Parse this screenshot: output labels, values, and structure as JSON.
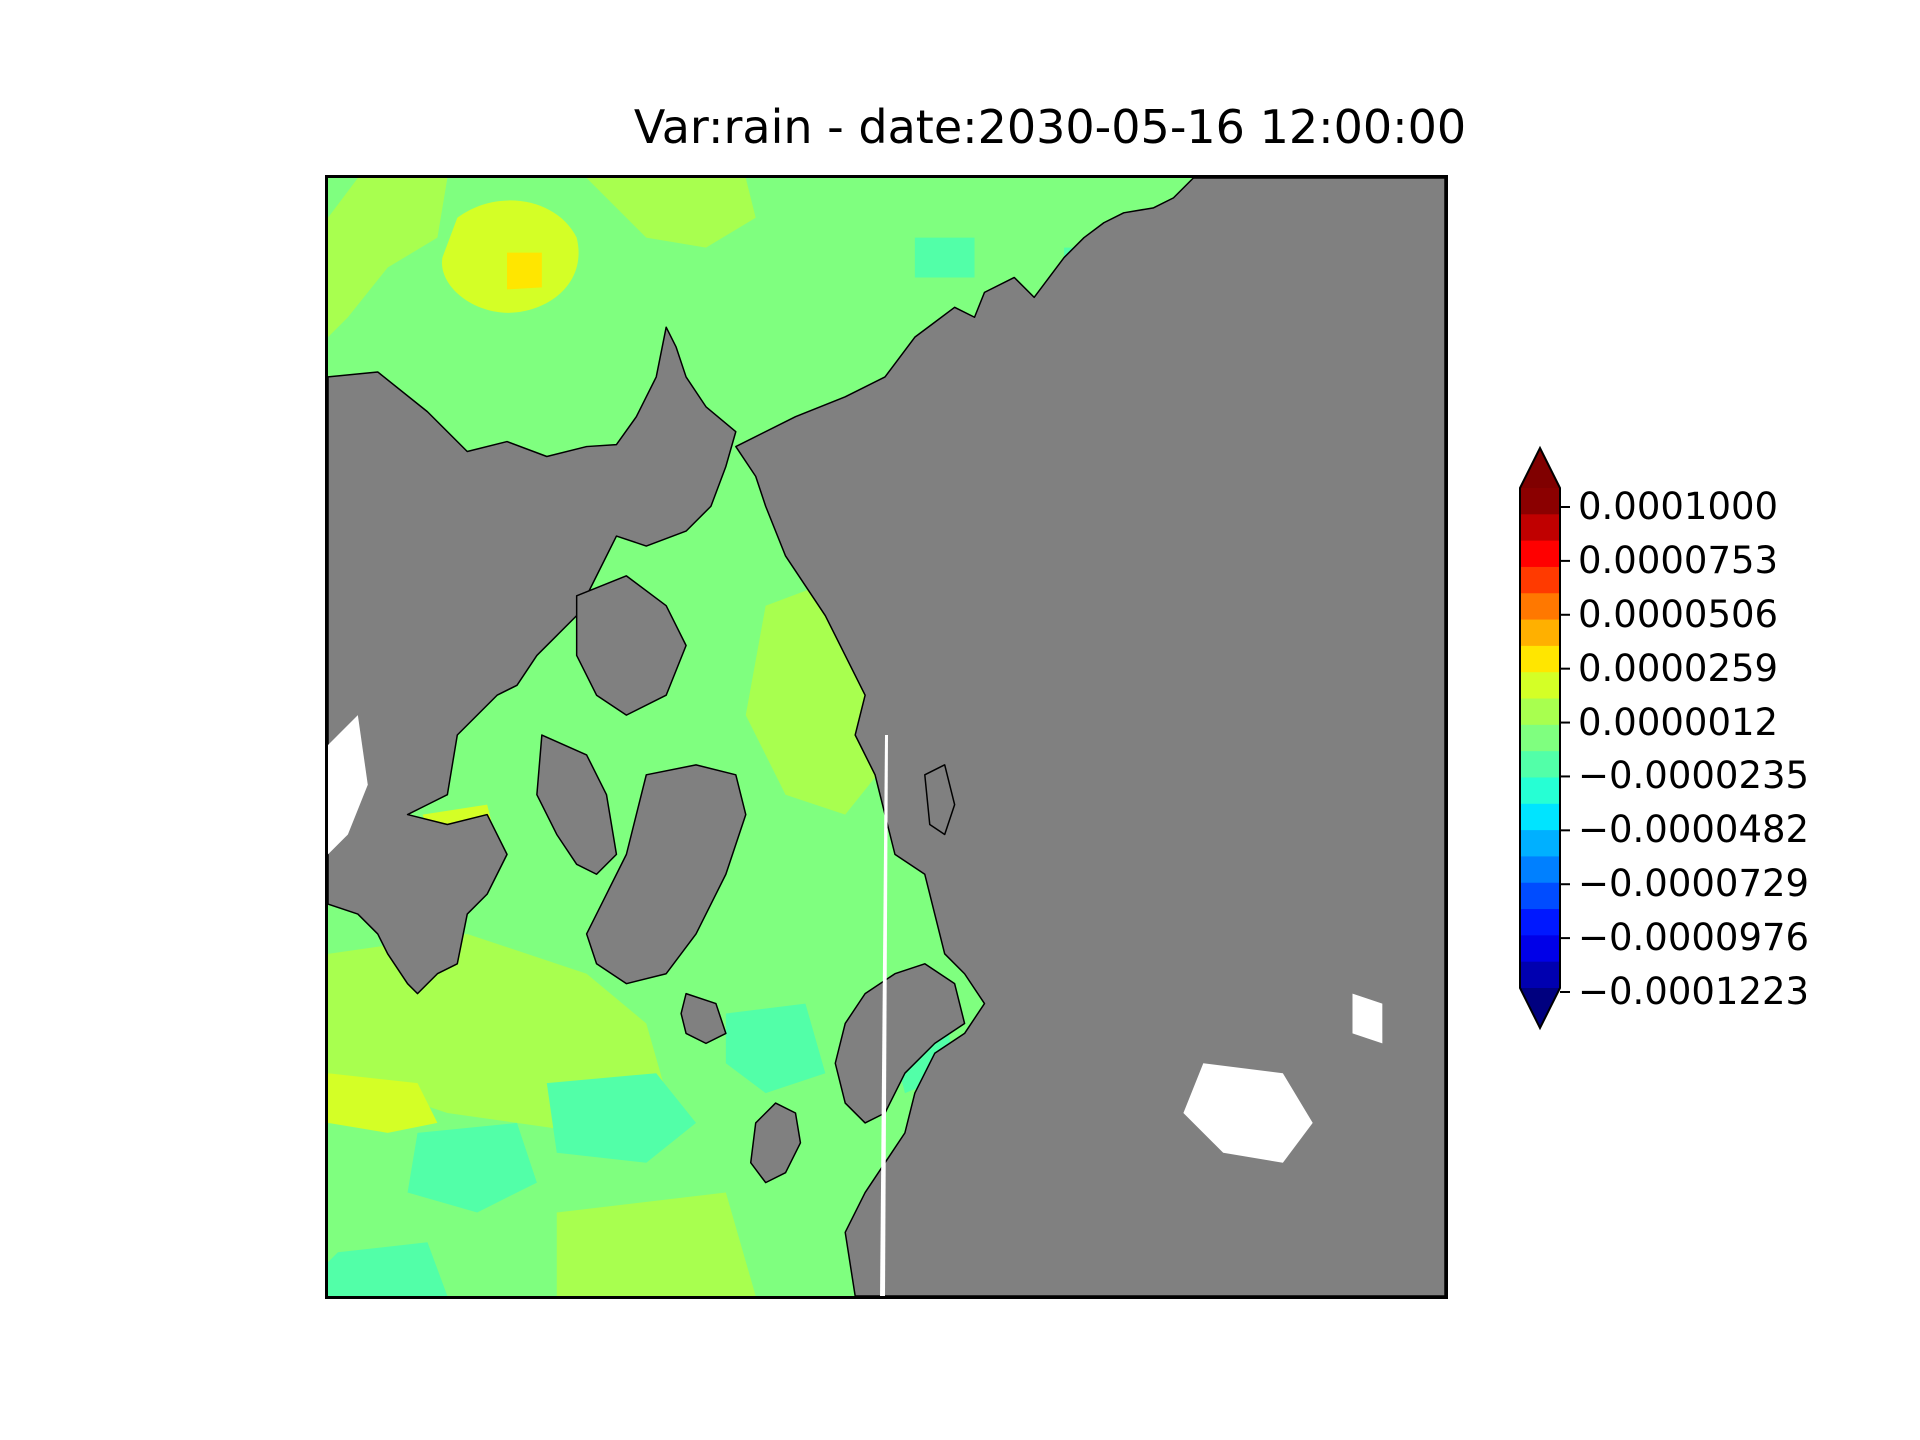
{
  "title": "Var:rain - date:2030-05-16 12:00:00",
  "colorbar": {
    "extend": "both",
    "tick_labels": [
      "0.0001000",
      "0.0000753",
      "0.0000506",
      "0.0000259",
      "0.0000012",
      "−0.0000235",
      "−0.0000482",
      "−0.0000729",
      "−0.0000976",
      "−0.0001223"
    ],
    "colors_top_to_bottom": [
      "#8b0000",
      "#c00000",
      "#ff0000",
      "#ff3a00",
      "#ff7800",
      "#ffb000",
      "#ffe600",
      "#d4ff26",
      "#a8ff4f",
      "#7fff7f",
      "#52ffa8",
      "#26ffd4",
      "#00e4ff",
      "#00b0ff",
      "#0080ff",
      "#004cff",
      "#0018ff",
      "#0000e8",
      "#0000b0"
    ],
    "over_color": "#800000",
    "under_color": "#00007f"
  },
  "map": {
    "projection": "north-polar-stereographic",
    "land_color": "#808080",
    "ocean_base_color": "#7fff7f",
    "missing_color": "#ffffff"
  }
}
